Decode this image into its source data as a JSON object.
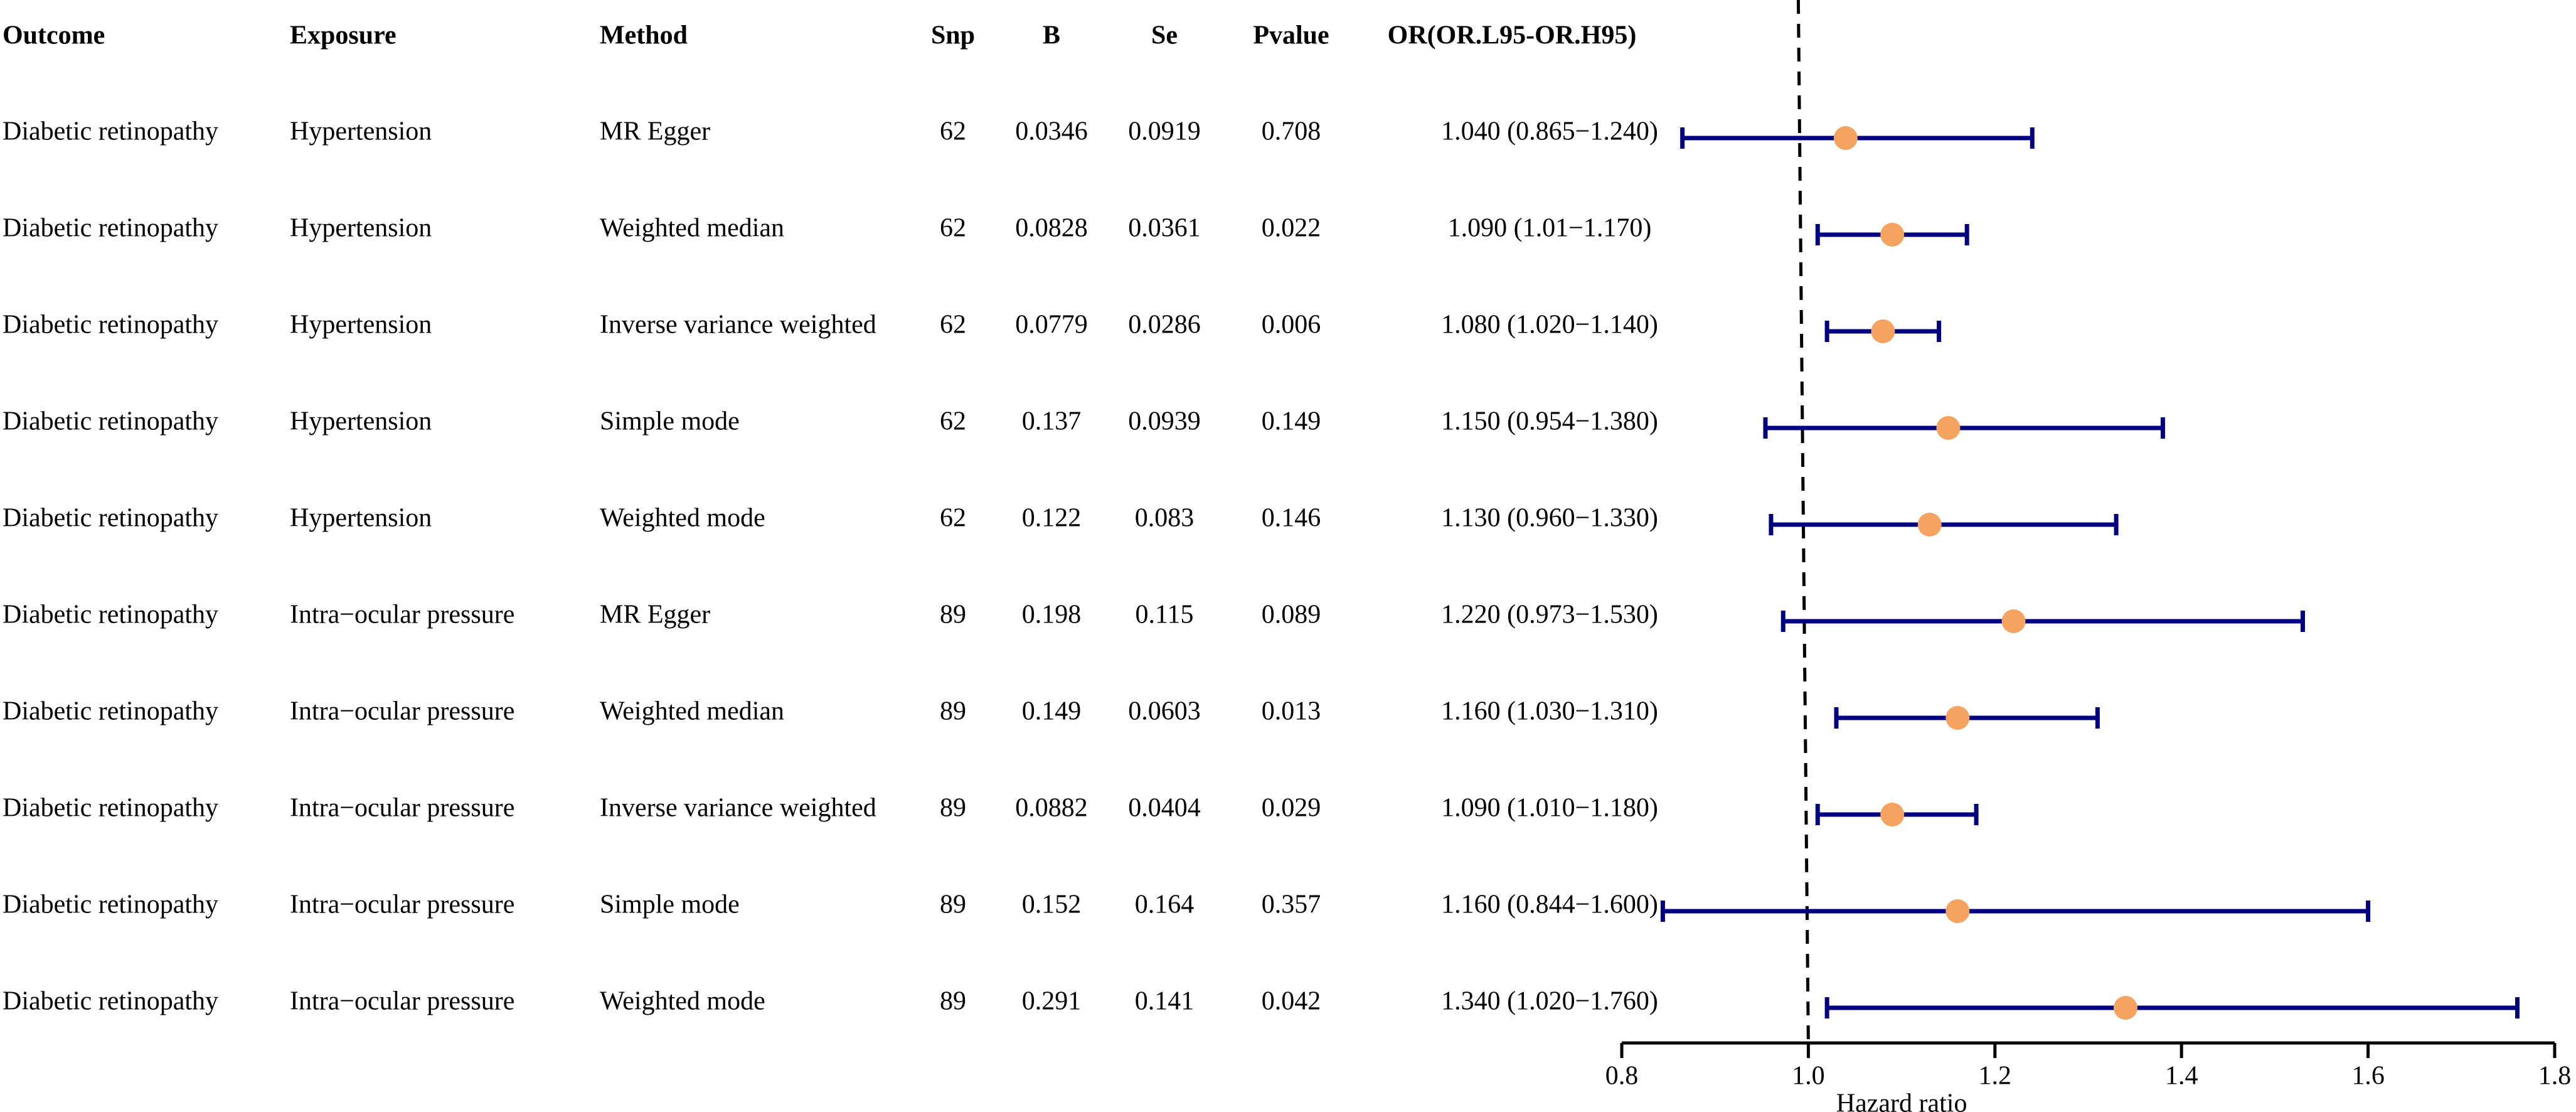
{
  "chart_data": {
    "type": "forest",
    "columns": [
      "Outcome",
      "Exposure",
      "Method",
      "Snp",
      "B",
      "Se",
      "Pvalue",
      "OR(OR.L95-OR.H95)"
    ],
    "rows": [
      {
        "outcome": "Diabetic retinopathy",
        "exposure": "Hypertension",
        "method": "MR Egger",
        "snp": "62",
        "b": "0.0346",
        "se": "0.0919",
        "pvalue": "0.708",
        "or_text": "1.040 (0.865−1.240)",
        "or": 1.04,
        "lo": 0.865,
        "hi": 1.24
      },
      {
        "outcome": "Diabetic retinopathy",
        "exposure": "Hypertension",
        "method": "Weighted median",
        "snp": "62",
        "b": "0.0828",
        "se": "0.0361",
        "pvalue": "0.022",
        "or_text": "1.090 (1.01−1.170)",
        "or": 1.09,
        "lo": 1.01,
        "hi": 1.17
      },
      {
        "outcome": "Diabetic retinopathy",
        "exposure": "Hypertension",
        "method": "Inverse variance weighted",
        "snp": "62",
        "b": "0.0779",
        "se": "0.0286",
        "pvalue": "0.006",
        "or_text": "1.080 (1.020−1.140)",
        "or": 1.08,
        "lo": 1.02,
        "hi": 1.14
      },
      {
        "outcome": "Diabetic retinopathy",
        "exposure": "Hypertension",
        "method": "Simple mode",
        "snp": "62",
        "b": "0.137",
        "se": "0.0939",
        "pvalue": "0.149",
        "or_text": "1.150 (0.954−1.380)",
        "or": 1.15,
        "lo": 0.954,
        "hi": 1.38
      },
      {
        "outcome": "Diabetic retinopathy",
        "exposure": "Hypertension",
        "method": "Weighted mode",
        "snp": "62",
        "b": "0.122",
        "se": "0.083",
        "pvalue": "0.146",
        "or_text": "1.130 (0.960−1.330)",
        "or": 1.13,
        "lo": 0.96,
        "hi": 1.33
      },
      {
        "outcome": "Diabetic retinopathy",
        "exposure": "Intra−ocular pressure",
        "method": "MR Egger",
        "snp": "89",
        "b": "0.198",
        "se": "0.115",
        "pvalue": "0.089",
        "or_text": "1.220 (0.973−1.530)",
        "or": 1.22,
        "lo": 0.973,
        "hi": 1.53
      },
      {
        "outcome": "Diabetic retinopathy",
        "exposure": "Intra−ocular pressure",
        "method": "Weighted median",
        "snp": "89",
        "b": "0.149",
        "se": "0.0603",
        "pvalue": "0.013",
        "or_text": "1.160 (1.030−1.310)",
        "or": 1.16,
        "lo": 1.03,
        "hi": 1.31
      },
      {
        "outcome": "Diabetic retinopathy",
        "exposure": "Intra−ocular pressure",
        "method": "Inverse variance weighted",
        "snp": "89",
        "b": "0.0882",
        "se": "0.0404",
        "pvalue": "0.029",
        "or_text": "1.090 (1.010−1.180)",
        "or": 1.09,
        "lo": 1.01,
        "hi": 1.18
      },
      {
        "outcome": "Diabetic retinopathy",
        "exposure": "Intra−ocular pressure",
        "method": "Simple mode",
        "snp": "89",
        "b": "0.152",
        "se": "0.164",
        "pvalue": "0.357",
        "or_text": "1.160 (0.844−1.600)",
        "or": 1.16,
        "lo": 0.844,
        "hi": 1.6
      },
      {
        "outcome": "Diabetic retinopathy",
        "exposure": "Intra−ocular pressure",
        "method": "Weighted mode",
        "snp": "89",
        "b": "0.291",
        "se": "0.141",
        "pvalue": "0.042",
        "or_text": "1.340 (1.020−1.760)",
        "or": 1.34,
        "lo": 1.02,
        "hi": 1.76
      }
    ],
    "xlabel": "Hazard ratio",
    "xlim": [
      0.8,
      1.8
    ],
    "xticks": [
      0.8,
      1.0,
      1.2,
      1.4,
      1.6,
      1.8
    ],
    "xtick_labels": [
      "0.8",
      "1.0",
      "1.2",
      "1.4",
      "1.6",
      "1.8"
    ],
    "reference_line": 1.0,
    "colors": {
      "ci_line": "#000080",
      "point": "#F4A460",
      "reference": "#000000",
      "text": "#000000"
    }
  }
}
